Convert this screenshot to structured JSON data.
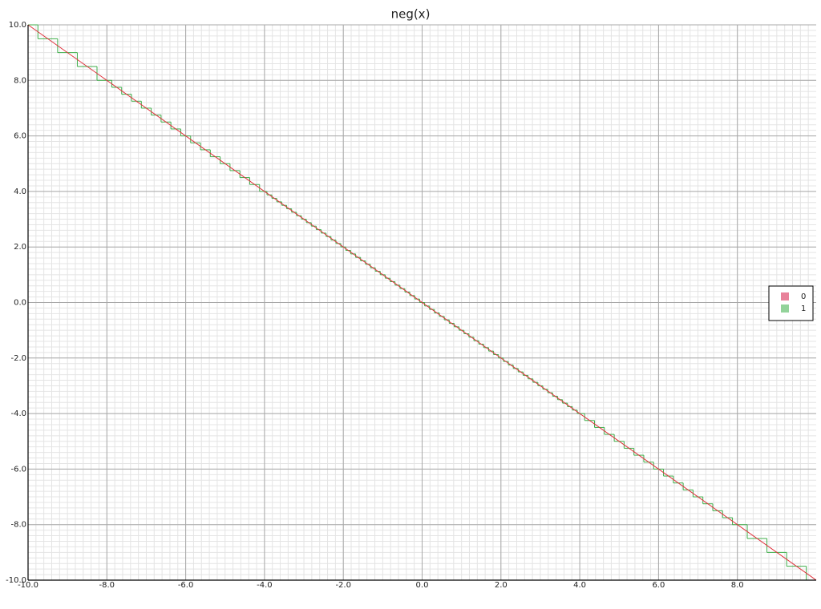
{
  "chart_data": {
    "type": "line",
    "title": "neg(x)",
    "xlim": [
      -10,
      10
    ],
    "ylim": [
      -10,
      10
    ],
    "xticks": [
      {
        "value": -10,
        "label": "-10.0"
      },
      {
        "value": -8,
        "label": "-8.0"
      },
      {
        "value": -6,
        "label": "-6.0"
      },
      {
        "value": -4,
        "label": "-4.0"
      },
      {
        "value": -2,
        "label": "-2.0"
      },
      {
        "value": 0,
        "label": "0.0"
      },
      {
        "value": 2,
        "label": "2.0"
      },
      {
        "value": 4,
        "label": "4.0"
      },
      {
        "value": 6,
        "label": "6.0"
      },
      {
        "value": 8,
        "label": "8.0"
      }
    ],
    "yticks": [
      {
        "value": -10,
        "label": "-10.0"
      },
      {
        "value": -8,
        "label": "-8.0"
      },
      {
        "value": -6,
        "label": "-6.0"
      },
      {
        "value": -4,
        "label": "-4.0"
      },
      {
        "value": -2,
        "label": "-2.0"
      },
      {
        "value": 0,
        "label": "0.0"
      },
      {
        "value": 2,
        "label": "2.0"
      },
      {
        "value": 4,
        "label": "4.0"
      },
      {
        "value": 6,
        "label": "6.0"
      },
      {
        "value": 8,
        "label": "8.0"
      },
      {
        "value": 10,
        "label": "10.0"
      }
    ],
    "grid": true,
    "legend": "right",
    "series": [
      {
        "name": "0",
        "color": "#e0303a",
        "legend_color": "#e8829a",
        "style": "line",
        "x": [
          -10,
          10
        ],
        "values": [
          10,
          -10
        ]
      },
      {
        "name": "1",
        "color": "#3fae4a",
        "legend_color": "#93d39a",
        "style": "step",
        "x": [
          -10,
          -9.75,
          -9.25,
          -8.75,
          -8.25,
          -7.875,
          -7.625,
          -7.375,
          -7.125,
          -6.875,
          -6.625,
          -6.375,
          -6.125,
          -5.875,
          -5.625,
          -5.375,
          -5.125,
          -4.875,
          -4.625,
          -4.375,
          -4.125,
          -3.9375,
          -3.8125,
          -3.6875,
          -3.5625,
          -3.4375,
          -3.3125,
          -3.1875,
          -3.0625,
          -2.9375,
          -2.8125,
          -2.6875,
          -2.5625,
          -2.4375,
          -2.3125,
          -2.1875,
          -2.0625,
          -1.9375,
          -1.8125,
          -1.6875,
          -1.5625,
          -1.4375,
          -1.3125,
          -1.1875,
          -1.0625,
          -0.9375,
          -0.8125,
          -0.6875,
          -0.5625,
          -0.4375,
          -0.3125,
          -0.1875,
          -0.0625,
          0.0625,
          0.1875,
          0.3125,
          0.4375,
          0.5625,
          0.6875,
          0.8125,
          0.9375,
          1.0625,
          1.1875,
          1.3125,
          1.4375,
          1.5625,
          1.6875,
          1.8125,
          1.9375,
          2.0625,
          2.1875,
          2.3125,
          2.4375,
          2.5625,
          2.6875,
          2.8125,
          2.9375,
          3.0625,
          3.1875,
          3.3125,
          3.4375,
          3.5625,
          3.6875,
          3.8125,
          3.9375,
          4.125,
          4.375,
          4.625,
          4.875,
          5.125,
          5.375,
          5.625,
          5.875,
          6.125,
          6.375,
          6.625,
          6.875,
          7.125,
          7.375,
          7.625,
          7.875,
          8.25,
          8.75,
          9.25,
          9.75
        ],
        "values": [
          10,
          9.5,
          9,
          8.5,
          8,
          7.75,
          7.5,
          7.25,
          7,
          6.75,
          6.5,
          6.25,
          6,
          5.75,
          5.5,
          5.25,
          5,
          4.75,
          4.5,
          4.25,
          4,
          3.875,
          3.75,
          3.625,
          3.5,
          3.375,
          3.25,
          3.125,
          3,
          2.875,
          2.75,
          2.625,
          2.5,
          2.375,
          2.25,
          2.125,
          2,
          1.875,
          1.75,
          1.625,
          1.5,
          1.375,
          1.25,
          1.125,
          1,
          0.875,
          0.75,
          0.625,
          0.5,
          0.375,
          0.25,
          0.125,
          0,
          -0.125,
          -0.25,
          -0.375,
          -0.5,
          -0.625,
          -0.75,
          -0.875,
          -1,
          -1.125,
          -1.25,
          -1.375,
          -1.5,
          -1.625,
          -1.75,
          -1.875,
          -2,
          -2.125,
          -2.25,
          -2.375,
          -2.5,
          -2.625,
          -2.75,
          -2.875,
          -3,
          -3.125,
          -3.25,
          -3.375,
          -3.5,
          -3.625,
          -3.75,
          -3.875,
          -4,
          -4.25,
          -4.5,
          -4.75,
          -5,
          -5.25,
          -5.5,
          -5.75,
          -6,
          -6.25,
          -6.5,
          -6.75,
          -7,
          -7.25,
          -7.5,
          -7.75,
          -8,
          -8.5,
          -9,
          -9.5,
          -10
        ]
      }
    ]
  }
}
